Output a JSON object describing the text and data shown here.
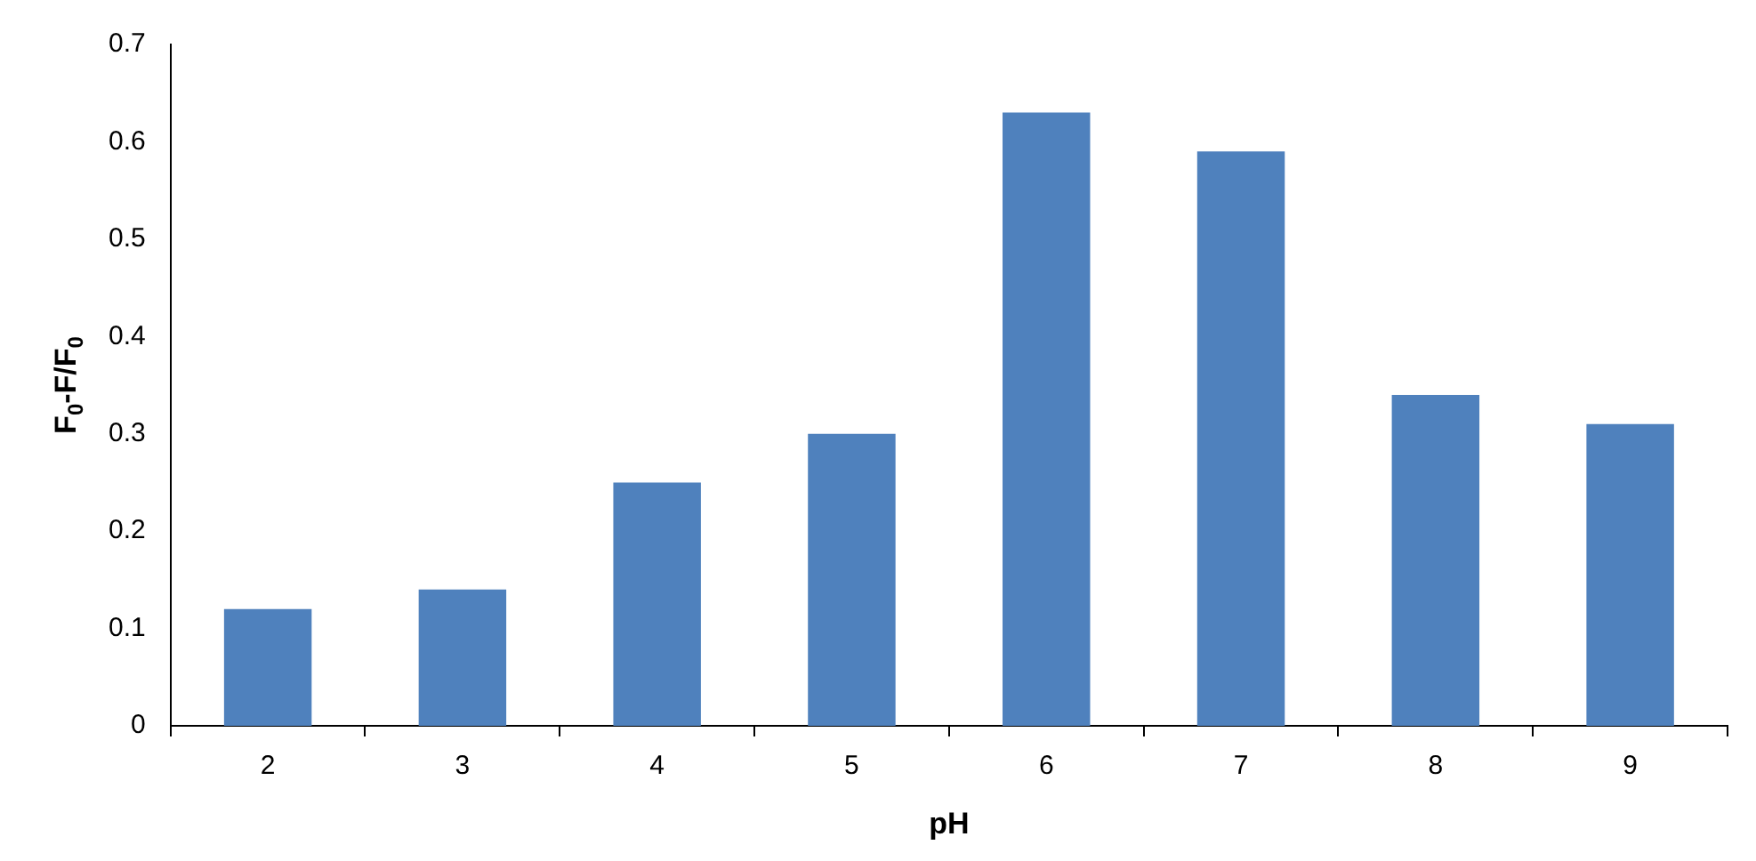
{
  "chart_data": {
    "type": "bar",
    "xlabel": "pH",
    "ylabel": "F$_{0}$-F/F$_{0}$",
    "categories": [
      "2",
      "3",
      "4",
      "5",
      "6",
      "7",
      "8",
      "9"
    ],
    "values": [
      0.12,
      0.14,
      0.25,
      0.3,
      0.63,
      0.59,
      0.34,
      0.31
    ],
    "color": "#4f81bd",
    "ylim": [
      0,
      0.7
    ],
    "yticks": [
      0,
      0.1,
      0.2,
      0.3,
      0.4,
      0.5,
      0.6,
      0.7
    ],
    "grid": false,
    "legend": false
  }
}
